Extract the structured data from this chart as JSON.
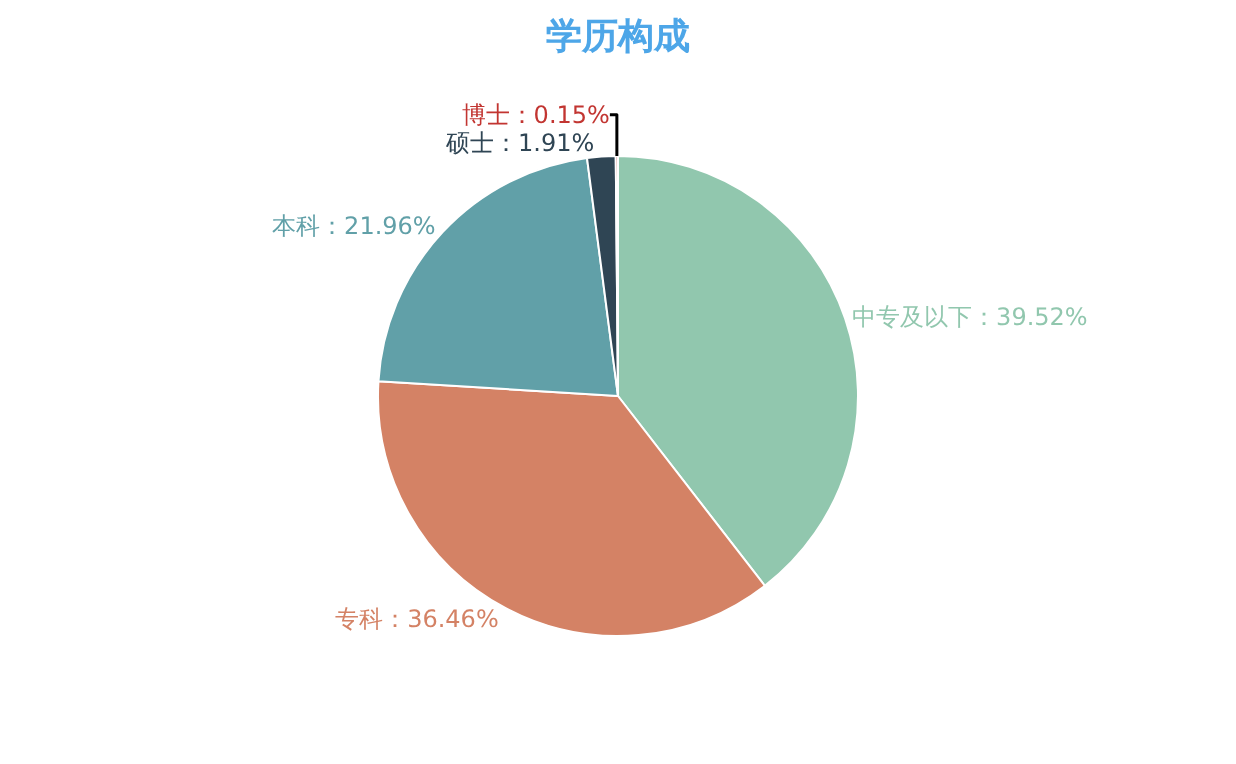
{
  "chart_data": {
    "type": "pie",
    "title": "学历构成",
    "categories": [
      "中专及以下",
      "专科",
      "本科",
      "硕士",
      "博士"
    ],
    "values": [
      39.52,
      36.46,
      21.96,
      1.91,
      0.15
    ],
    "colors": [
      "#91c7ae",
      "#d48265",
      "#61a0a8",
      "#2f4554",
      "#c23531"
    ],
    "value_labels": [
      "39.52%",
      "36.46%",
      "21.96%",
      "1.91%",
      "0.15%"
    ],
    "legend": false
  }
}
